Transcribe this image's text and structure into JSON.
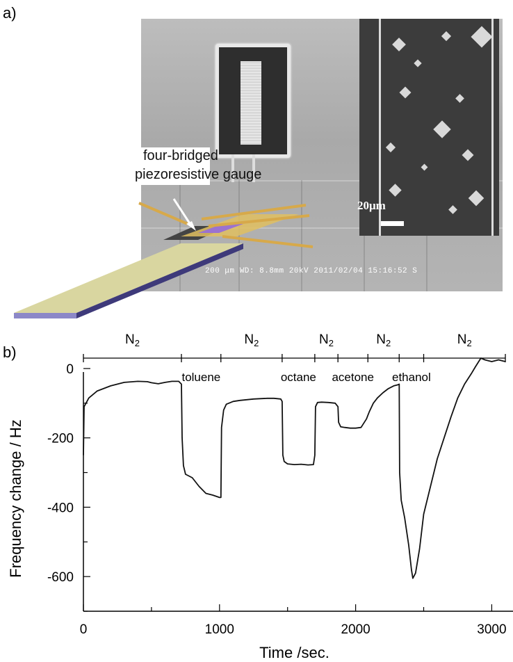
{
  "panels": {
    "a": "a)",
    "b": "b)"
  },
  "panel_a": {
    "callout": {
      "line1": "four-bridged",
      "line2": "piezoresistive gauge"
    },
    "scalebar": "20μm",
    "sem_footer": "200 μm  WD: 8.8mm   20kV 2011/02/04  15:16:52 S"
  },
  "chart_data": {
    "type": "line",
    "xlabel": "Time /sec.",
    "ylabel": "Frequency change / Hz",
    "xlim": [
      0,
      3100
    ],
    "ylim": [
      -700,
      30
    ],
    "xticks": [
      0,
      1000,
      2000,
      3000
    ],
    "yticks": [
      0,
      -200,
      -400,
      -600
    ],
    "gas_segments": [
      {
        "label": "N2",
        "start": 0,
        "end": 720
      },
      {
        "label": "toluene",
        "start": 720,
        "end": 1010
      },
      {
        "label": "N2",
        "start": 1010,
        "end": 1460
      },
      {
        "label": "octane",
        "start": 1460,
        "end": 1700
      },
      {
        "label": "N2",
        "start": 1700,
        "end": 1870
      },
      {
        "label": "acetone",
        "start": 1870,
        "end": 2090
      },
      {
        "label": "N2",
        "start": 2090,
        "end": 2320
      },
      {
        "label": "ethanol",
        "start": 2320,
        "end": 2500
      },
      {
        "label": "N2",
        "start": 2500,
        "end": 3100
      }
    ],
    "n2_sub": "2",
    "series": [
      {
        "x": [
          0,
          5,
          40,
          100,
          200,
          300,
          400,
          470,
          500,
          550,
          600,
          650,
          700,
          720,
          725,
          735,
          750,
          800,
          850,
          900,
          950,
          1000,
          1010,
          1015,
          1030,
          1050,
          1100,
          1150,
          1200,
          1250,
          1300,
          1350,
          1400,
          1450,
          1460,
          1465,
          1475,
          1500,
          1550,
          1600,
          1650,
          1690,
          1700,
          1705,
          1720,
          1750,
          1800,
          1850,
          1870,
          1875,
          1890,
          1920,
          1960,
          2000,
          2040,
          2080,
          2090,
          2100,
          2130,
          2160,
          2200,
          2240,
          2280,
          2310,
          2320,
          2323,
          2335,
          2360,
          2390,
          2410,
          2420,
          2440,
          2470,
          2500,
          2550,
          2600,
          2650,
          2700,
          2750,
          2800,
          2850,
          2880,
          2920,
          2950,
          3000,
          3050,
          3100
        ],
        "y": [
          -250,
          -110,
          -85,
          -65,
          -50,
          -40,
          -37,
          -38,
          -41,
          -44,
          -40,
          -37,
          -37,
          -45,
          -200,
          -280,
          -305,
          -315,
          -340,
          -360,
          -365,
          -372,
          -372,
          -170,
          -120,
          -103,
          -95,
          -92,
          -90,
          -88,
          -87,
          -86,
          -86,
          -88,
          -95,
          -250,
          -268,
          -275,
          -277,
          -276,
          -278,
          -277,
          -250,
          -110,
          -98,
          -97,
          -98,
          -100,
          -110,
          -155,
          -168,
          -170,
          -172,
          -172,
          -170,
          -145,
          -135,
          -125,
          -100,
          -85,
          -70,
          -58,
          -50,
          -47,
          -45,
          -300,
          -380,
          -430,
          -510,
          -580,
          -605,
          -590,
          -520,
          -420,
          -340,
          -260,
          -200,
          -140,
          -85,
          -45,
          -15,
          5,
          30,
          25,
          20,
          25,
          20
        ]
      }
    ]
  }
}
